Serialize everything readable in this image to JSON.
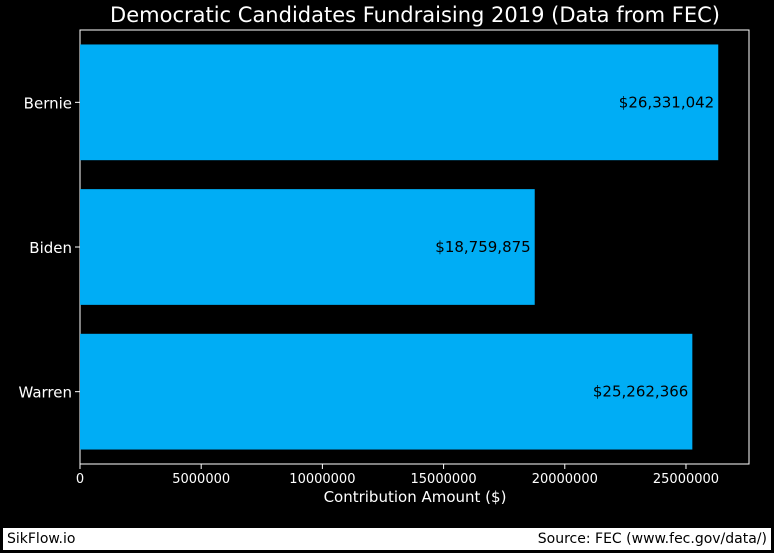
{
  "chart_data": {
    "type": "bar",
    "orientation": "horizontal",
    "title": "Democratic Candidates Fundraising 2019 (Data from FEC)",
    "xlabel": "Contribution Amount ($)",
    "ylabel": "",
    "categories": [
      "Bernie",
      "Biden",
      "Warren"
    ],
    "values": [
      26331042,
      18759875,
      25262366
    ],
    "value_labels": [
      "$26,331,042",
      "$18,759,875",
      "$25,262,366"
    ],
    "xticks": [
      0,
      5000000,
      10000000,
      15000000,
      20000000,
      25000000
    ],
    "xtick_labels": [
      "0",
      "5000000",
      "10000000",
      "15000000",
      "20000000",
      "25000000"
    ],
    "xlim": [
      0,
      27600000
    ],
    "grid": false,
    "bar_color": "#00adf5",
    "background_color": "#000000",
    "text_color": "#ffffff"
  },
  "footer": {
    "left": "SikFlow.io",
    "right": "Source: FEC (www.fec.gov/data/)"
  }
}
